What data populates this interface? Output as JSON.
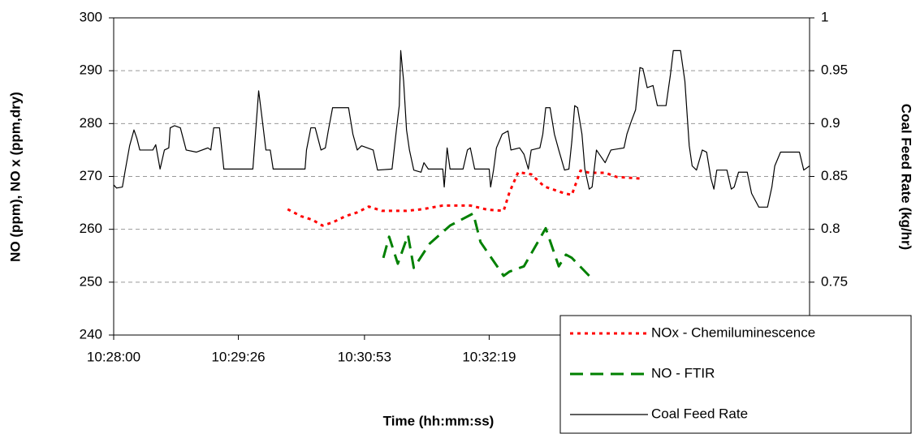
{
  "chart_data": {
    "type": "line",
    "x_label": "Time (hh:mm:ss)",
    "y_label": "NO (ppm), NO x (ppm,dry)",
    "y2_label": "Coal Feed Rate (kg/hr)",
    "xlim": [
      "10:28:00",
      "10:36:00"
    ],
    "xticks": [
      "10:28:00",
      "10:29:26",
      "10:30:53",
      "10:32:19"
    ],
    "ylim": [
      240,
      300
    ],
    "yticks": [
      240,
      250,
      260,
      270,
      280,
      290,
      300
    ],
    "y2lim": [
      0.7,
      1
    ],
    "y2ticks": [
      0.75,
      0.8,
      0.85,
      0.9,
      0.95,
      1
    ],
    "grid": true,
    "legend": "lower right",
    "series": [
      {
        "name": "NOx - Chemiluminescence",
        "color": "#ff0000",
        "style": "dotted",
        "x": [
          "10:30:00",
          "10:30:09",
          "10:30:17",
          "10:30:24",
          "10:30:31",
          "10:30:40",
          "10:30:48",
          "10:30:56",
          "10:31:05",
          "10:31:22",
          "10:31:33",
          "10:31:47",
          "10:32:06",
          "10:32:18",
          "10:32:29",
          "10:32:33",
          "10:32:39",
          "10:32:48",
          "10:32:57",
          "10:33:11",
          "10:33:16",
          "10:33:22",
          "10:33:28",
          "10:33:39",
          "10:33:47",
          "10:34:04"
        ],
        "values": [
          263.8,
          262.5,
          261.8,
          260.7,
          261.3,
          262.5,
          263.2,
          264.3,
          263.5,
          263.5,
          263.8,
          264.5,
          264.5,
          263.7,
          263.5,
          267.0,
          270.8,
          270.4,
          268.1,
          266.8,
          266.5,
          271.1,
          270.7,
          270.7,
          269.9,
          269.6
        ]
      },
      {
        "name": "NO - FTIR",
        "color": "#008000",
        "style": "dashed",
        "x": [
          "10:31:06",
          "10:31:10",
          "10:31:16",
          "10:31:23",
          "10:31:27",
          "10:31:38",
          "10:31:52",
          "10:32:08",
          "10:32:13",
          "10:32:29",
          "10:32:33",
          "10:32:43",
          "10:32:58",
          "10:33:07",
          "10:33:12",
          "10:33:16",
          "10:33:28"
        ],
        "values": [
          254.6,
          258.6,
          253.5,
          258.9,
          252.7,
          257.3,
          260.7,
          263.0,
          257.6,
          251.2,
          252.0,
          253.0,
          260.2,
          253.0,
          255.2,
          254.6,
          251.2
        ]
      },
      {
        "name": "Coal Feed Rate",
        "color": "#000000",
        "style": "solid",
        "axis": "y2",
        "x": [
          "10:28:00",
          "10:28:02",
          "10:28:06",
          "10:28:08",
          "10:28:11",
          "10:28:14",
          "10:28:16",
          "10:28:18",
          "10:28:22",
          "10:28:27",
          "10:28:29",
          "10:28:32",
          "10:28:35",
          "10:28:38",
          "10:28:39",
          "10:28:42",
          "10:28:46",
          "10:28:50",
          "10:28:57",
          "10:29:05",
          "10:29:07",
          "10:29:09",
          "10:29:13",
          "10:29:16",
          "10:29:36",
          "10:29:38",
          "10:29:40",
          "10:29:42",
          "10:29:45",
          "10:29:48",
          "10:29:50",
          "10:29:55",
          "10:30:03",
          "10:30:12",
          "10:30:13",
          "10:30:16",
          "10:30:19",
          "10:30:23",
          "10:30:26",
          "10:30:28",
          "10:30:31",
          "10:30:42",
          "10:30:45",
          "10:30:48",
          "10:30:51",
          "10:30:59",
          "10:31:02",
          "10:31:12",
          "10:31:15",
          "10:31:17",
          "10:31:18",
          "10:31:20",
          "10:31:22",
          "10:31:24",
          "10:31:27",
          "10:31:32",
          "10:31:34",
          "10:31:37",
          "10:31:47",
          "10:31:48",
          "10:31:50",
          "10:31:52",
          "10:32:01",
          "10:32:04",
          "10:32:06",
          "10:32:09",
          "10:32:19",
          "10:32:20",
          "10:32:22",
          "10:32:24",
          "10:32:28",
          "10:32:32",
          "10:32:34",
          "10:32:40",
          "10:32:43",
          "10:32:46",
          "10:32:48",
          "10:32:54",
          "10:32:56",
          "10:32:58",
          "10:33:01",
          "10:33:04",
          "10:33:07",
          "10:33:11",
          "10:33:14",
          "10:33:16",
          "10:33:18",
          "10:33:20",
          "10:33:23",
          "10:33:25",
          "10:33:28",
          "10:33:30",
          "10:33:33",
          "10:33:39",
          "10:33:43",
          "10:33:52",
          "10:33:54",
          "10:33:57",
          "10:34:00",
          "10:34:03",
          "10:34:05",
          "10:34:08",
          "10:34:12",
          "10:34:15",
          "10:34:21",
          "10:34:24",
          "10:34:26",
          "10:34:31",
          "10:34:34",
          "10:34:37",
          "10:34:39",
          "10:34:42",
          "10:34:46",
          "10:34:49",
          "10:34:52",
          "10:34:54",
          "10:34:56",
          "10:35:03",
          "10:35:06",
          "10:35:08",
          "10:35:11",
          "10:35:17",
          "10:35:20",
          "10:35:25",
          "10:35:31",
          "10:35:34",
          "10:35:36",
          "10:35:40",
          "10:35:53",
          "10:35:56",
          "10:36:00"
        ],
        "values": [
          0.842,
          0.839,
          0.84,
          0.856,
          0.879,
          0.894,
          0.886,
          0.875,
          0.875,
          0.875,
          0.88,
          0.857,
          0.875,
          0.877,
          0.896,
          0.898,
          0.896,
          0.875,
          0.873,
          0.877,
          0.875,
          0.896,
          0.896,
          0.857,
          0.857,
          0.894,
          0.931,
          0.909,
          0.875,
          0.875,
          0.857,
          0.857,
          0.857,
          0.857,
          0.875,
          0.896,
          0.896,
          0.875,
          0.877,
          0.893,
          0.915,
          0.915,
          0.89,
          0.875,
          0.879,
          0.875,
          0.856,
          0.857,
          0.894,
          0.917,
          0.969,
          0.94,
          0.894,
          0.875,
          0.856,
          0.854,
          0.863,
          0.857,
          0.857,
          0.84,
          0.877,
          0.857,
          0.857,
          0.875,
          0.877,
          0.857,
          0.857,
          0.84,
          0.856,
          0.877,
          0.89,
          0.893,
          0.875,
          0.877,
          0.871,
          0.857,
          0.875,
          0.877,
          0.89,
          0.915,
          0.915,
          0.89,
          0.875,
          0.856,
          0.857,
          0.883,
          0.917,
          0.915,
          0.89,
          0.857,
          0.838,
          0.84,
          0.875,
          0.863,
          0.875,
          0.877,
          0.89,
          0.902,
          0.913,
          0.953,
          0.952,
          0.934,
          0.936,
          0.917,
          0.917,
          0.946,
          0.969,
          0.969,
          0.94,
          0.879,
          0.86,
          0.856,
          0.875,
          0.873,
          0.848,
          0.838,
          0.856,
          0.856,
          0.838,
          0.84,
          0.854,
          0.854,
          0.834,
          0.821,
          0.821,
          0.84,
          0.86,
          0.873,
          0.873,
          0.856,
          0.86
        ]
      }
    ]
  }
}
